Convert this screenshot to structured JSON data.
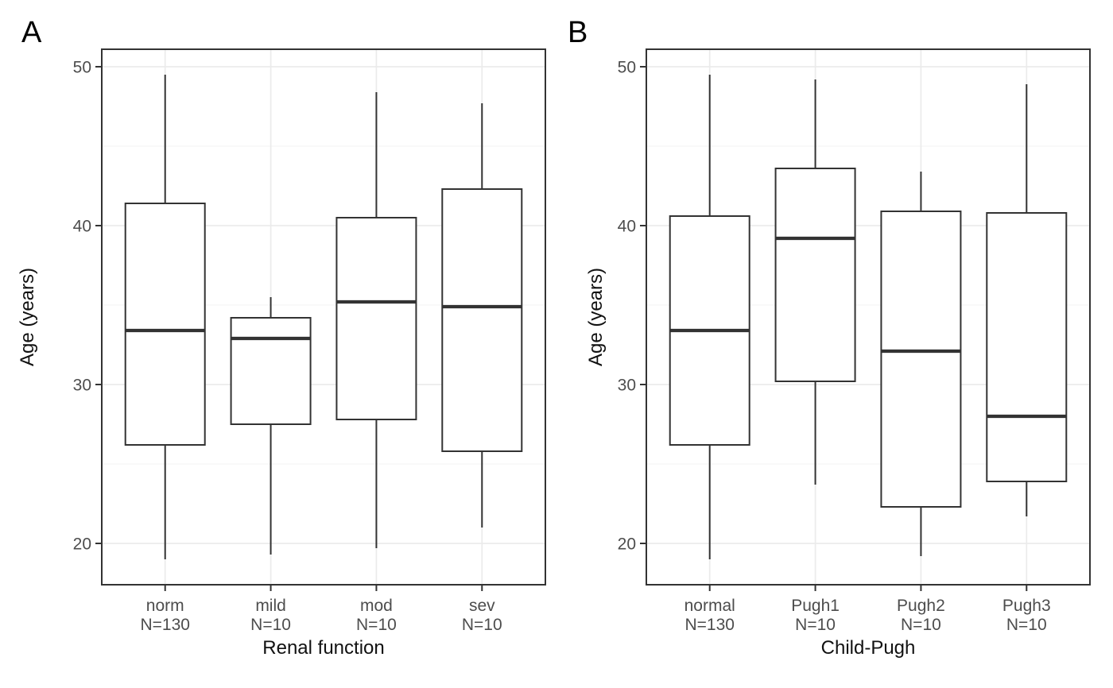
{
  "figure": {
    "background": "#ffffff",
    "panel_border_color": "#333333",
    "box_stroke_color": "#333333",
    "box_fill_color": "#ffffff",
    "grid_major_color": "#ebebeb",
    "grid_minor_color": "#f3f3f3",
    "tick_mark_color": "#333333",
    "tick_label_color": "#4d4d4d",
    "axis_title_color": "#111111"
  },
  "chart_data": [
    {
      "type": "boxplot",
      "panel_tag": "A",
      "xlabel": "Renal function",
      "ylabel": "Age (years)",
      "ylim": [
        17.4,
        51.1
      ],
      "yticks": [
        20,
        30,
        40,
        50
      ],
      "ytick_labels": [
        "20",
        "30",
        "40",
        "50"
      ],
      "yticks_minor": [
        25,
        35,
        45
      ],
      "grid": true,
      "legend": "none",
      "categories": [
        "norm",
        "mild",
        "mod",
        "sev"
      ],
      "n_labels": [
        "N=130",
        "N=10",
        "N=10",
        "N=10"
      ],
      "series": [
        {
          "category": "norm",
          "n_label": "N=130",
          "whisker_low": 19.0,
          "q1": 26.2,
          "median": 33.4,
          "q3": 41.4,
          "whisker_high": 49.5
        },
        {
          "category": "mild",
          "n_label": "N=10",
          "whisker_low": 19.3,
          "q1": 27.5,
          "median": 32.9,
          "q3": 34.2,
          "whisker_high": 35.5
        },
        {
          "category": "mod",
          "n_label": "N=10",
          "whisker_low": 19.7,
          "q1": 27.8,
          "median": 35.2,
          "q3": 40.5,
          "whisker_high": 48.4
        },
        {
          "category": "sev",
          "n_label": "N=10",
          "whisker_low": 21.0,
          "q1": 25.8,
          "median": 34.9,
          "q3": 42.3,
          "whisker_high": 47.7
        }
      ]
    },
    {
      "type": "boxplot",
      "panel_tag": "B",
      "xlabel": "Child-Pugh",
      "ylabel": "Age (years)",
      "ylim": [
        17.4,
        51.1
      ],
      "yticks": [
        20,
        30,
        40,
        50
      ],
      "ytick_labels": [
        "20",
        "30",
        "40",
        "50"
      ],
      "yticks_minor": [
        25,
        35,
        45
      ],
      "grid": true,
      "legend": "none",
      "categories": [
        "normal",
        "Pugh1",
        "Pugh2",
        "Pugh3"
      ],
      "n_labels": [
        "N=130",
        "N=10",
        "N=10",
        "N=10"
      ],
      "series": [
        {
          "category": "normal",
          "n_label": "N=130",
          "whisker_low": 19.0,
          "q1": 26.2,
          "median": 33.4,
          "q3": 40.6,
          "whisker_high": 49.5
        },
        {
          "category": "Pugh1",
          "n_label": "N=10",
          "whisker_low": 23.7,
          "q1": 30.2,
          "median": 39.2,
          "q3": 43.6,
          "whisker_high": 49.2
        },
        {
          "category": "Pugh2",
          "n_label": "N=10",
          "whisker_low": 19.2,
          "q1": 22.3,
          "median": 32.1,
          "q3": 40.9,
          "whisker_high": 43.4
        },
        {
          "category": "Pugh3",
          "n_label": "N=10",
          "whisker_low": 21.7,
          "q1": 23.9,
          "median": 28.0,
          "q3": 40.8,
          "whisker_high": 48.9
        }
      ]
    }
  ]
}
